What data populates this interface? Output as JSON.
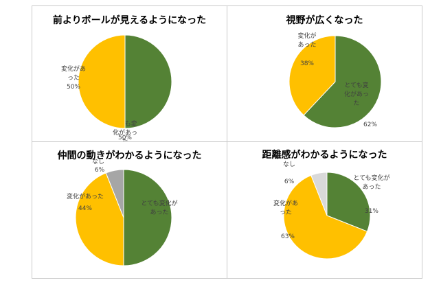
{
  "colors": {
    "green": "#548235",
    "yellow": "#FFC000",
    "gray": "#A6A6A6",
    "lightgray": "#D9D9D9"
  },
  "chart_data": [
    {
      "type": "pie",
      "title": "前よりボールが見えるようになった",
      "slices": [
        {
          "label": "とても変化があった",
          "value": 50,
          "pct_label": "50%",
          "color": "#548235"
        },
        {
          "label": "変化があった",
          "value": 50,
          "pct_label": "50%",
          "color": "#FFC000"
        }
      ]
    },
    {
      "type": "pie",
      "title": "視野が広くなった",
      "slices": [
        {
          "label": "とても変化があった",
          "value": 62,
          "pct_label": "62%",
          "color": "#548235"
        },
        {
          "label": "変化があった",
          "value": 38,
          "pct_label": "38%",
          "color": "#FFC000"
        }
      ]
    },
    {
      "type": "pie",
      "title": "仲間の動きがわかるようになった",
      "slices": [
        {
          "label": "とても変化があった",
          "value": 50,
          "pct_label": "",
          "color": "#548235"
        },
        {
          "label": "変化があった",
          "value": 44,
          "pct_label": "44%",
          "color": "#FFC000"
        },
        {
          "label": "なし",
          "value": 6,
          "pct_label": "6%",
          "color": "#A6A6A6"
        }
      ]
    },
    {
      "type": "pie",
      "title": "距離感がわかるようになった",
      "slices": [
        {
          "label": "とても変化があった",
          "value": 31,
          "pct_label": "31%",
          "color": "#548235"
        },
        {
          "label": "変化があった",
          "value": 63,
          "pct_label": "63%",
          "color": "#FFC000"
        },
        {
          "label": "なし",
          "value": 6,
          "pct_label": "6%",
          "color": "#D9D9D9"
        }
      ]
    }
  ]
}
